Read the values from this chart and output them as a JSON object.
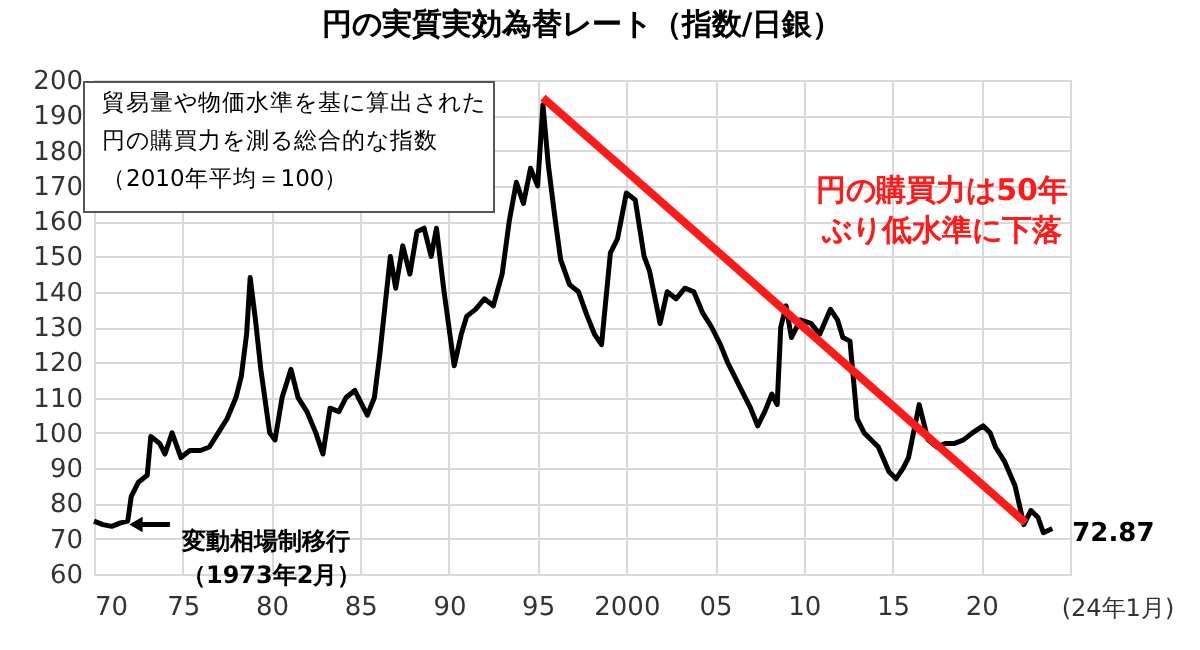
{
  "chart_data": {
    "type": "line",
    "title": "円の実質実効為替レート（指数/日銀）",
    "xlim": [
      1970,
      2025
    ],
    "ylim": [
      60,
      200
    ],
    "xticks": [
      {
        "value": 1970,
        "label": "70"
      },
      {
        "value": 1975,
        "label": "75"
      },
      {
        "value": 1980,
        "label": "80"
      },
      {
        "value": 1985,
        "label": "85"
      },
      {
        "value": 1990,
        "label": "90"
      },
      {
        "value": 1995,
        "label": "95"
      },
      2000,
      {
        "value": 2005,
        "label": "05"
      },
      {
        "value": 2010,
        "label": "10"
      },
      {
        "value": 2015,
        "label": "15"
      },
      {
        "value": 2020,
        "label": "20"
      }
    ],
    "yticks": [
      60,
      70,
      80,
      90,
      100,
      110,
      120,
      130,
      140,
      150,
      160,
      170,
      180,
      190,
      200
    ],
    "grid": true,
    "line_style": "solid",
    "marker": "none",
    "series": [
      {
        "color": "#000000",
        "x": [
          1970.0,
          1970.5,
          1971.0,
          1971.5,
          1971.9,
          1972.1,
          1972.5,
          1973.0,
          1973.2,
          1973.7,
          1974.0,
          1974.4,
          1974.9,
          1975.4,
          1976.0,
          1976.5,
          1977.0,
          1977.5,
          1978.0,
          1978.3,
          1978.6,
          1978.8,
          1979.1,
          1979.4,
          1979.9,
          1980.2,
          1980.6,
          1981.1,
          1981.5,
          1982.0,
          1982.5,
          1982.9,
          1983.3,
          1983.8,
          1984.2,
          1984.7,
          1985.1,
          1985.4,
          1985.8,
          1986.1,
          1986.4,
          1986.7,
          1987.0,
          1987.4,
          1987.8,
          1988.2,
          1988.6,
          1989.0,
          1989.3,
          1989.7,
          1990.0,
          1990.3,
          1990.7,
          1991.0,
          1991.5,
          1992.0,
          1992.5,
          1993.0,
          1993.4,
          1993.8,
          1994.2,
          1994.6,
          1995.0,
          1995.3,
          1995.6,
          1996.0,
          1996.3,
          1996.8,
          1997.3,
          1997.8,
          1998.2,
          1998.6,
          1999.1,
          1999.5,
          2000.0,
          2000.5,
          2001.0,
          2001.3,
          2001.9,
          2002.3,
          2002.8,
          2003.3,
          2003.8,
          2004.3,
          2004.8,
          2005.3,
          2005.7,
          2006.0,
          2006.5,
          2007.0,
          2007.4,
          2007.8,
          2008.2,
          2008.5,
          2008.7,
          2009.0,
          2009.3,
          2009.8,
          2010.4,
          2010.9,
          2011.5,
          2011.9,
          2012.2,
          2012.6,
          2013.0,
          2013.4,
          2013.8,
          2014.2,
          2014.8,
          2015.2,
          2015.6,
          2015.9,
          2016.5,
          2017.0,
          2017.5,
          2018.0,
          2018.5,
          2019.0,
          2019.5,
          2020.1,
          2020.5,
          2020.8,
          2021.3,
          2021.9,
          2022.4,
          2022.8,
          2023.2,
          2023.5,
          2024.0
        ],
        "values": [
          75,
          74,
          73.5,
          74.5,
          75,
          82,
          86,
          88,
          99,
          97,
          94,
          100,
          93,
          95,
          95,
          96,
          100,
          104,
          110,
          116,
          128,
          144,
          132,
          118,
          100,
          98,
          110,
          118,
          110,
          106,
          100,
          94,
          107,
          106,
          110,
          112,
          108,
          105,
          110,
          122,
          136,
          150,
          141,
          153,
          145,
          157,
          158,
          150,
          158,
          141,
          130,
          119,
          128,
          133,
          135,
          138,
          136,
          145,
          160,
          171,
          165,
          175,
          170,
          193,
          176,
          160,
          149,
          142,
          140,
          133,
          128,
          125,
          151,
          155,
          168,
          166,
          150,
          146,
          131,
          140,
          138,
          141,
          140,
          134,
          130,
          125,
          120,
          117,
          112,
          107,
          102,
          106,
          111,
          108,
          130,
          136,
          127,
          132,
          131,
          128,
          135,
          132,
          127,
          126,
          104,
          100,
          98,
          96,
          89,
          87,
          90,
          93,
          108,
          98,
          96,
          97,
          97,
          98,
          100,
          102,
          100,
          96,
          92,
          85,
          74,
          78,
          76,
          71.7,
          72.87
        ]
      },
      {
        "color": "#ff1a1a",
        "x": [
          1995.3,
          2022.5
        ],
        "values": [
          195,
          74.5
        ]
      }
    ],
    "annotations": [
      "貿易量や物価水準を基に算出された円の購買力を測る総合的な指数（2010年平均＝100）",
      "円の購買力は50年ぶり低水準に下落",
      {
        "text": "変動相場制移行（1973年2月）",
        "x": 1971.8,
        "y": 74
      },
      {
        "text": "72.87",
        "x": 2024.0,
        "y": 72.87
      },
      "(24年1月)"
    ]
  }
}
